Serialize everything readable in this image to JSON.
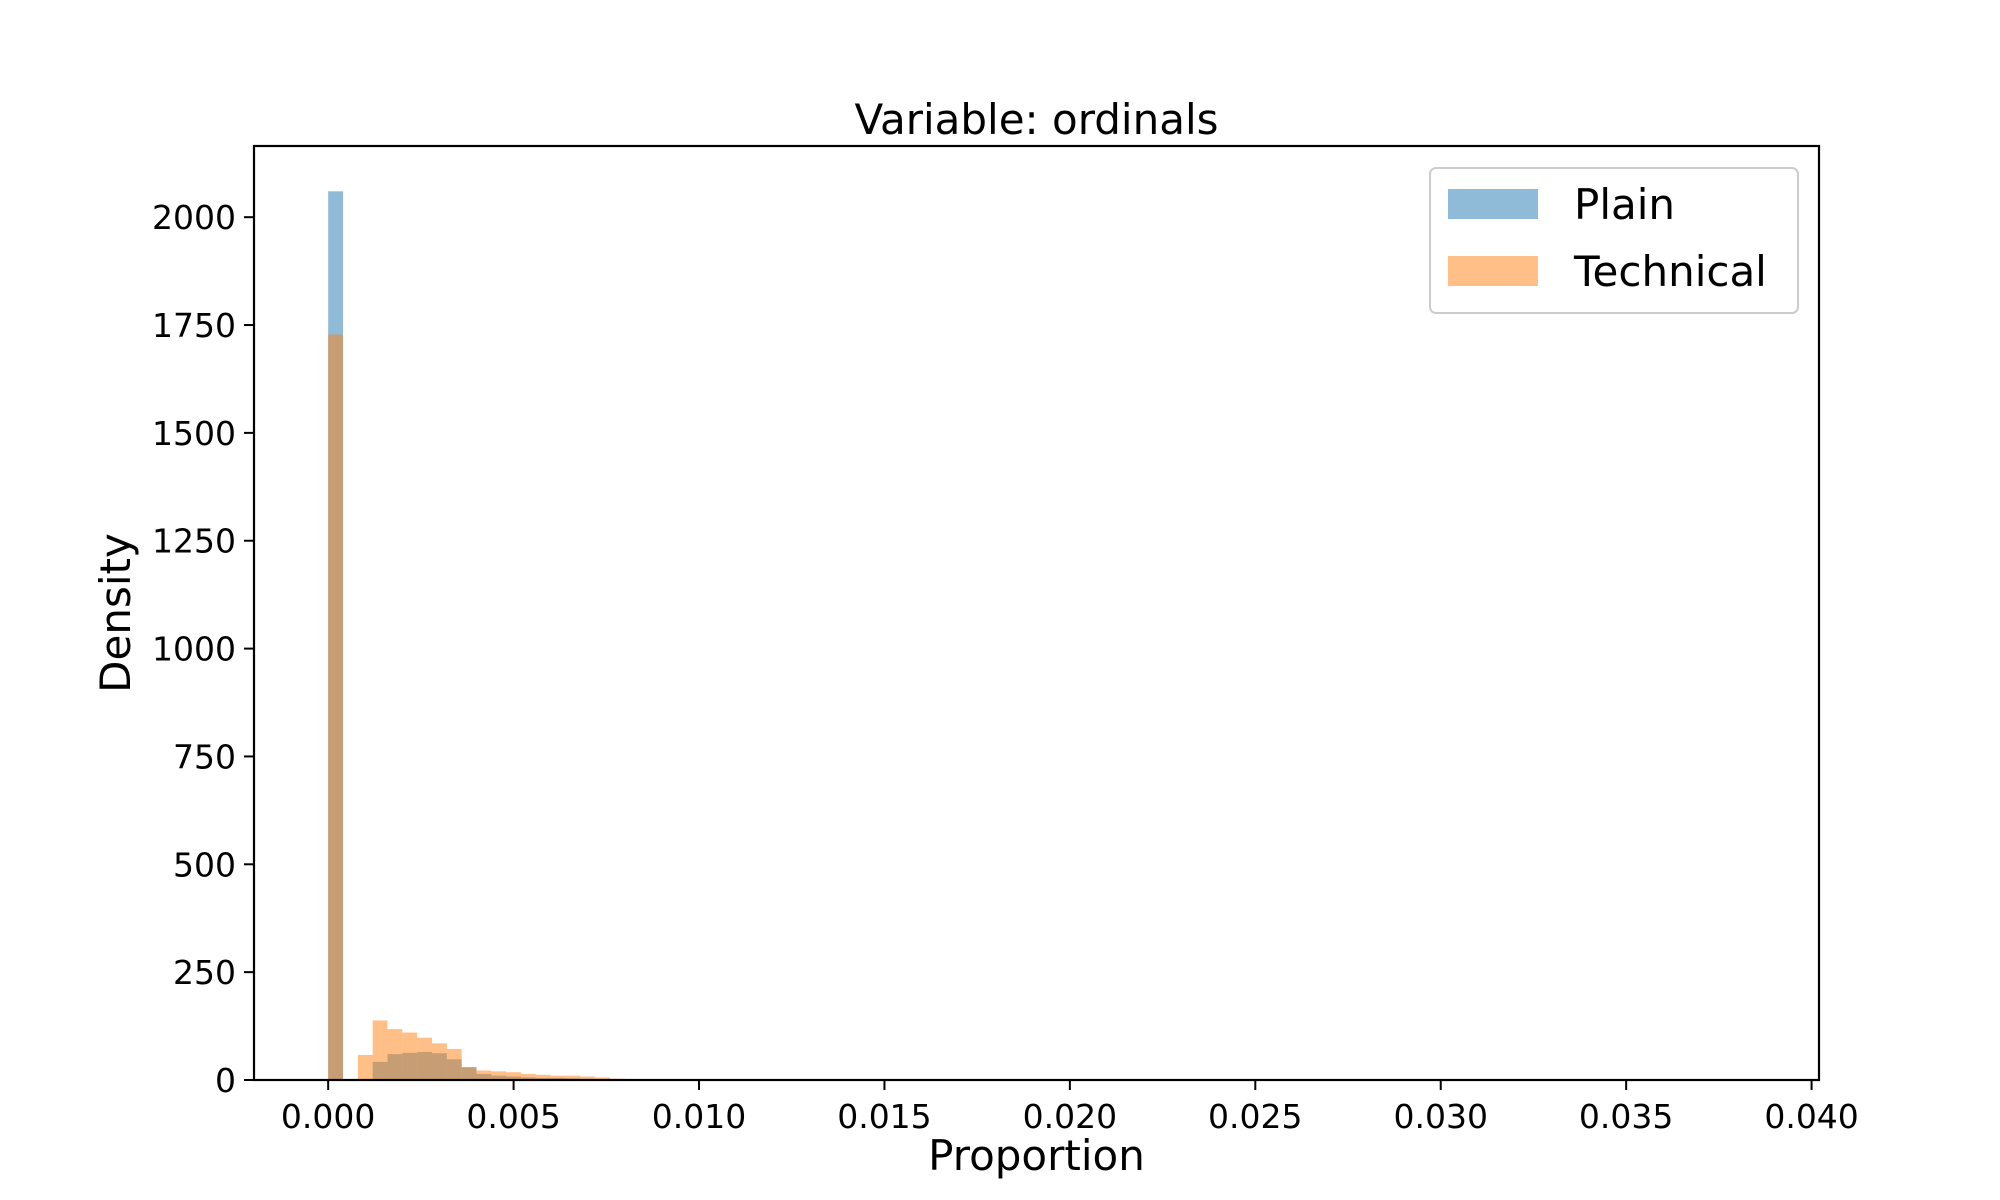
{
  "chart_data": {
    "type": "histogram",
    "title": "Variable: ordinals",
    "xlabel": "Proportion",
    "ylabel": "Density",
    "xlim": [
      -0.002,
      0.0402
    ],
    "ylim": [
      0,
      2165
    ],
    "xticks": [
      0.0,
      0.005,
      0.01,
      0.015,
      0.02,
      0.025,
      0.03,
      0.035,
      0.04
    ],
    "xtick_labels": [
      "0.000",
      "0.005",
      "0.010",
      "0.015",
      "0.020",
      "0.025",
      "0.030",
      "0.035",
      "0.040"
    ],
    "yticks": [
      0,
      250,
      500,
      750,
      1000,
      1250,
      1500,
      1750,
      2000
    ],
    "ytick_labels": [
      "0",
      "250",
      "500",
      "750",
      "1000",
      "1250",
      "1500",
      "1750",
      "2000"
    ],
    "grid": false,
    "legend_position": "top-right",
    "bin_width": 0.0004,
    "series": [
      {
        "name": "Plain",
        "color": "#1f77b4",
        "alpha": 0.5,
        "bins": [
          {
            "x0": 0.0,
            "density": 2060
          },
          {
            "x0": 0.0012,
            "density": 42
          },
          {
            "x0": 0.0016,
            "density": 60
          },
          {
            "x0": 0.002,
            "density": 63
          },
          {
            "x0": 0.0024,
            "density": 65
          },
          {
            "x0": 0.0028,
            "density": 62
          },
          {
            "x0": 0.0032,
            "density": 48
          },
          {
            "x0": 0.0036,
            "density": 30
          },
          {
            "x0": 0.004,
            "density": 14
          },
          {
            "x0": 0.0044,
            "density": 10
          },
          {
            "x0": 0.0048,
            "density": 8
          },
          {
            "x0": 0.0052,
            "density": 6
          },
          {
            "x0": 0.0056,
            "density": 5
          },
          {
            "x0": 0.006,
            "density": 5
          },
          {
            "x0": 0.0064,
            "density": 4
          },
          {
            "x0": 0.0068,
            "density": 3
          },
          {
            "x0": 0.0072,
            "density": 2
          },
          {
            "x0": 0.0076,
            "density": 1
          }
        ]
      },
      {
        "name": "Technical",
        "color": "#ff7f0e",
        "alpha": 0.5,
        "bins": [
          {
            "x0": 0.0,
            "density": 1728
          },
          {
            "x0": 0.0008,
            "density": 58
          },
          {
            "x0": 0.0012,
            "density": 138
          },
          {
            "x0": 0.0016,
            "density": 118
          },
          {
            "x0": 0.002,
            "density": 110
          },
          {
            "x0": 0.0024,
            "density": 98
          },
          {
            "x0": 0.0028,
            "density": 85
          },
          {
            "x0": 0.0032,
            "density": 72
          },
          {
            "x0": 0.0036,
            "density": 28
          },
          {
            "x0": 0.004,
            "density": 22
          },
          {
            "x0": 0.0044,
            "density": 20
          },
          {
            "x0": 0.0048,
            "density": 18
          },
          {
            "x0": 0.0052,
            "density": 14
          },
          {
            "x0": 0.0056,
            "density": 12
          },
          {
            "x0": 0.006,
            "density": 10
          },
          {
            "x0": 0.0064,
            "density": 10
          },
          {
            "x0": 0.0068,
            "density": 8
          },
          {
            "x0": 0.0072,
            "density": 6
          },
          {
            "x0": 0.0076,
            "density": 3
          }
        ]
      }
    ]
  }
}
